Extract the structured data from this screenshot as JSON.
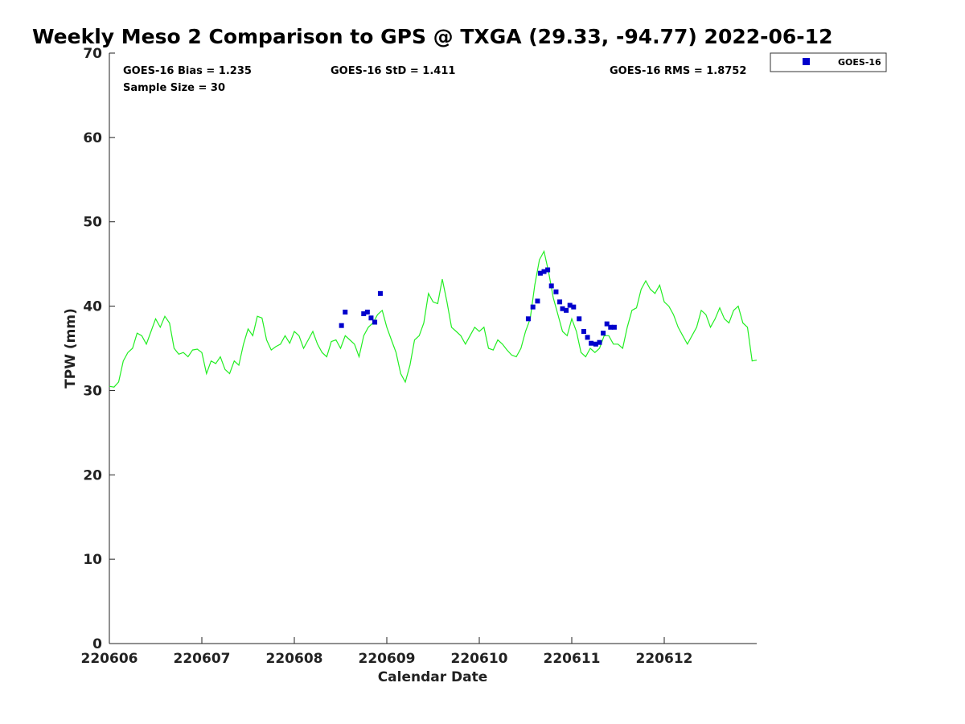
{
  "chart_data": {
    "type": "scatter",
    "title": "Weekly Meso 2 Comparison to GPS @ TXGA (29.33, -94.77) 2022-06-12",
    "xlabel": "Calendar Date",
    "ylabel": "TPW (mm)",
    "xlim": [
      0,
      7
    ],
    "ylim": [
      0,
      70
    ],
    "x_ticks": [
      0,
      1,
      2,
      3,
      4,
      5,
      6
    ],
    "x_tick_labels": [
      "220606",
      "220607",
      "220608",
      "220609",
      "220610",
      "220611",
      "220612"
    ],
    "y_ticks": [
      0,
      10,
      20,
      30,
      40,
      50,
      60,
      70
    ],
    "y_tick_labels": [
      "0",
      "10",
      "20",
      "30",
      "40",
      "50",
      "60",
      "70"
    ],
    "grid": false,
    "legend_position": "outside-top-right",
    "stats": {
      "bias": "GOES-16 Bias = 1.235",
      "std": "GOES-16 StD = 1.411",
      "rms": "GOES-16 RMS = 1.8752",
      "sample": "Sample Size = 30"
    },
    "series": [
      {
        "name": "GOES-16",
        "kind": "scatter",
        "color": "#0000cc",
        "marker": "square",
        "x": [
          2.51,
          2.55,
          2.75,
          2.79,
          2.83,
          2.87,
          2.93,
          4.53,
          4.58,
          4.63,
          4.66,
          4.7,
          4.74,
          4.78,
          4.83,
          4.87,
          4.9,
          4.94,
          4.98,
          5.02,
          5.08,
          5.13,
          5.17,
          5.21,
          5.26,
          5.3,
          5.34,
          5.38,
          5.42,
          5.46
        ],
        "y": [
          37.7,
          39.3,
          39.1,
          39.3,
          38.6,
          38.1,
          41.5,
          38.5,
          39.9,
          40.6,
          43.9,
          44.1,
          44.3,
          42.4,
          41.7,
          40.5,
          39.7,
          39.5,
          40.1,
          39.9,
          38.5,
          37.0,
          36.3,
          35.6,
          35.5,
          35.7,
          36.8,
          37.9,
          37.5,
          37.5
        ]
      },
      {
        "kind": "line",
        "color": "#22ee22",
        "x": [
          0.0,
          0.05,
          0.1,
          0.15,
          0.2,
          0.25,
          0.3,
          0.35,
          0.4,
          0.45,
          0.5,
          0.55,
          0.6,
          0.65,
          0.7,
          0.75,
          0.8,
          0.85,
          0.9,
          0.95,
          1.0,
          1.05,
          1.1,
          1.15,
          1.2,
          1.25,
          1.3,
          1.35,
          1.4,
          1.45,
          1.5,
          1.55,
          1.6,
          1.65,
          1.7,
          1.75,
          1.8,
          1.85,
          1.9,
          1.95,
          2.0,
          2.05,
          2.1,
          2.15,
          2.2,
          2.25,
          2.3,
          2.35,
          2.4,
          2.45,
          2.5,
          2.55,
          2.6,
          2.65,
          2.7,
          2.75,
          2.8,
          2.85,
          2.9,
          2.95,
          3.0,
          3.05,
          3.1,
          3.15,
          3.2,
          3.25,
          3.3,
          3.35,
          3.4,
          3.45,
          3.5,
          3.55,
          3.6,
          3.65,
          3.7,
          3.75,
          3.8,
          3.85,
          3.9,
          3.95,
          4.0,
          4.05,
          4.1,
          4.15,
          4.2,
          4.25,
          4.3,
          4.35,
          4.4,
          4.45,
          4.5,
          4.55,
          4.6,
          4.65,
          4.7,
          4.75,
          4.8,
          4.85,
          4.9,
          4.95,
          5.0,
          5.05,
          5.1,
          5.15,
          5.2,
          5.25,
          5.3,
          5.35,
          5.4,
          5.45,
          5.5,
          5.55,
          5.6,
          5.65,
          5.7,
          5.75,
          5.8,
          5.85,
          5.9,
          5.95,
          6.0,
          6.05,
          6.1,
          6.15,
          6.2,
          6.25,
          6.3,
          6.35,
          6.4,
          6.45,
          6.5,
          6.55,
          6.6,
          6.65,
          6.7,
          6.75,
          6.8,
          6.85,
          6.9,
          6.95,
          7.0
        ],
        "y": [
          30.5,
          30.4,
          31.0,
          33.5,
          34.5,
          35.0,
          36.8,
          36.5,
          35.5,
          37.0,
          38.5,
          37.5,
          38.8,
          38.0,
          35.0,
          34.3,
          34.5,
          34.0,
          34.8,
          34.9,
          34.5,
          32.0,
          33.5,
          33.2,
          34.0,
          32.5,
          32.0,
          33.5,
          33.0,
          35.5,
          37.3,
          36.5,
          38.8,
          38.6,
          36.0,
          34.8,
          35.2,
          35.5,
          36.5,
          35.6,
          37.0,
          36.5,
          35.0,
          36.0,
          37.0,
          35.5,
          34.5,
          34.0,
          35.8,
          36.0,
          35.0,
          36.5,
          36.0,
          35.5,
          34.0,
          36.5,
          37.5,
          38.0,
          39.0,
          39.5,
          37.5,
          36.0,
          34.5,
          32.0,
          31.0,
          33.0,
          36.0,
          36.5,
          38.0,
          41.5,
          40.5,
          40.3,
          43.2,
          40.5,
          37.5,
          37.0,
          36.5,
          35.5,
          36.5,
          37.5,
          37.0,
          37.5,
          35.0,
          34.8,
          36.0,
          35.5,
          34.8,
          34.2,
          34.0,
          35.0,
          37.0,
          38.5,
          42.5,
          45.5,
          46.5,
          44.0,
          41.0,
          39.0,
          37.0,
          36.5,
          38.5,
          37.0,
          34.5,
          34.0,
          35.0,
          34.5,
          35.0,
          36.5,
          36.5,
          35.5,
          35.5,
          35.0,
          37.5,
          39.5,
          39.8,
          42.0,
          43.0,
          42.0,
          41.5,
          42.5,
          40.5,
          40.0,
          39.0,
          37.5,
          36.5,
          35.5,
          36.5,
          37.5,
          39.5,
          39.0,
          37.5,
          38.5,
          39.8,
          38.5,
          38.0,
          39.5,
          40.0,
          38.0,
          37.5,
          33.5,
          33.6
        ]
      }
    ]
  }
}
